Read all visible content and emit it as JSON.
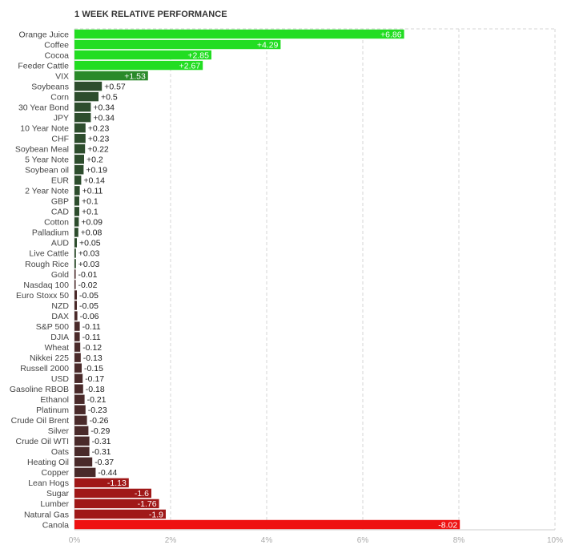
{
  "chart_data": {
    "type": "bar",
    "orientation": "horizontal",
    "title": "1 WEEK RELATIVE PERFORMANCE",
    "x_ticks": [
      "0%",
      "2%",
      "4%",
      "6%",
      "8%",
      "10%"
    ],
    "xlim": [
      0,
      10
    ],
    "grid": true,
    "categories": [
      "Orange Juice",
      "Coffee",
      "Cocoa",
      "Feeder Cattle",
      "VIX",
      "Soybeans",
      "Corn",
      "30 Year Bond",
      "JPY",
      "10 Year Note",
      "CHF",
      "Soybean Meal",
      "5 Year Note",
      "Soybean oil",
      "EUR",
      "2 Year Note",
      "GBP",
      "CAD",
      "Cotton",
      "Palladium",
      "AUD",
      "Live Cattle",
      "Rough Rice",
      "Gold",
      "Nasdaq 100",
      "Euro Stoxx 50",
      "NZD",
      "DAX",
      "S&P 500",
      "DJIA",
      "Wheat",
      "Nikkei 225",
      "Russell 2000",
      "USD",
      "Gasoline RBOB",
      "Ethanol",
      "Platinum",
      "Crude Oil Brent",
      "Silver",
      "Crude Oil WTI",
      "Oats",
      "Heating Oil",
      "Copper",
      "Lean Hogs",
      "Sugar",
      "Lumber",
      "Natural Gas",
      "Canola"
    ],
    "values": [
      6.86,
      4.29,
      2.85,
      2.67,
      1.53,
      0.57,
      0.5,
      0.34,
      0.34,
      0.23,
      0.23,
      0.22,
      0.2,
      0.19,
      0.14,
      0.11,
      0.1,
      0.1,
      0.09,
      0.08,
      0.05,
      0.03,
      0.03,
      -0.01,
      -0.02,
      -0.05,
      -0.05,
      -0.06,
      -0.11,
      -0.11,
      -0.12,
      -0.13,
      -0.15,
      -0.17,
      -0.18,
      -0.21,
      -0.23,
      -0.26,
      -0.29,
      -0.31,
      -0.31,
      -0.37,
      -0.44,
      -1.13,
      -1.6,
      -1.76,
      -1.9,
      -8.02
    ],
    "value_labels": [
      "+6.86",
      "+4.29",
      "+2.85",
      "+2.67",
      "+1.53",
      "+0.57",
      "+0.5",
      "+0.34",
      "+0.34",
      "+0.23",
      "+0.23",
      "+0.22",
      "+0.2",
      "+0.19",
      "+0.14",
      "+0.11",
      "+0.1",
      "+0.1",
      "+0.09",
      "+0.08",
      "+0.05",
      "+0.03",
      "+0.03",
      "-0.01",
      "-0.02",
      "-0.05",
      "-0.05",
      "-0.06",
      "-0.11",
      "-0.11",
      "-0.12",
      "-0.13",
      "-0.15",
      "-0.17",
      "-0.18",
      "-0.21",
      "-0.23",
      "-0.26",
      "-0.29",
      "-0.31",
      "-0.31",
      "-0.37",
      "-0.44",
      "-1.13",
      "-1.6",
      "-1.76",
      "-1.9",
      "-8.02"
    ],
    "colors": {
      "strong_positive": "#22dd22",
      "mid_positive": "#2a8a2a",
      "weak_positive": "#2d4d2d",
      "weak_negative": "#4a2a2a",
      "mid_negative": "#a01818",
      "strong_negative": "#ee1111",
      "grid": "#d5d5d5",
      "axis": "#cccccc"
    }
  }
}
